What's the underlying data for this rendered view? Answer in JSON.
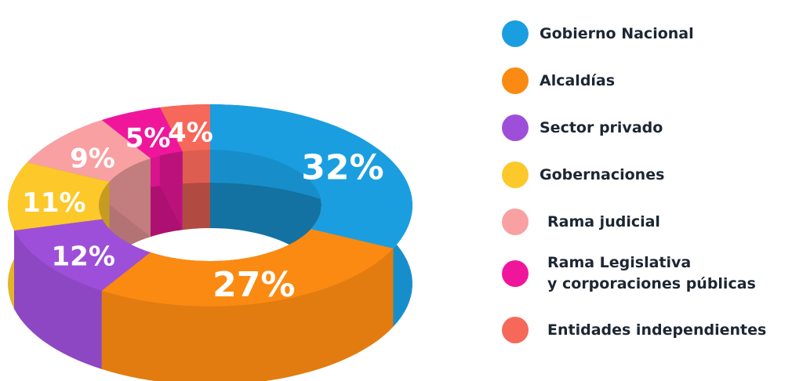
{
  "chart_data": {
    "type": "pie",
    "style": "3d-donut",
    "title": "",
    "categories": [
      "Gobierno Nacional",
      "Alcaldías",
      "Sector privado",
      "Gobernaciones",
      "Rama judicial",
      "Rama Legislativa y corporaciones públicas",
      "Entidades independientes"
    ],
    "values": [
      32,
      27,
      12,
      11,
      9,
      5,
      4
    ],
    "value_labels": [
      "32%",
      "27%",
      "12%",
      "11%",
      "9%",
      "5%",
      "4%"
    ],
    "colors": [
      "#1a9ee0",
      "#fb8a12",
      "#9d4fd9",
      "#fcc82a",
      "#f9a0a3",
      "#f0169c",
      "#f6685a"
    ],
    "legend_position": "right"
  },
  "legend": {
    "items": [
      {
        "label": "Gobierno Nacional",
        "color": "#1a9ee0"
      },
      {
        "label": "Alcaldías",
        "color": "#fb8a12"
      },
      {
        "label": "Sector privado",
        "color": "#9d4fd9"
      },
      {
        "label": "Gobernaciones",
        "color": "#fcc82a"
      },
      {
        "label": "Rama judicial",
        "color": "#f9a0a3"
      },
      {
        "label": "Rama Legislativa",
        "label_line2": "y corporaciones públicas",
        "color": "#f0169c"
      },
      {
        "label": "Entidades independientes",
        "color": "#f6685a"
      }
    ]
  }
}
